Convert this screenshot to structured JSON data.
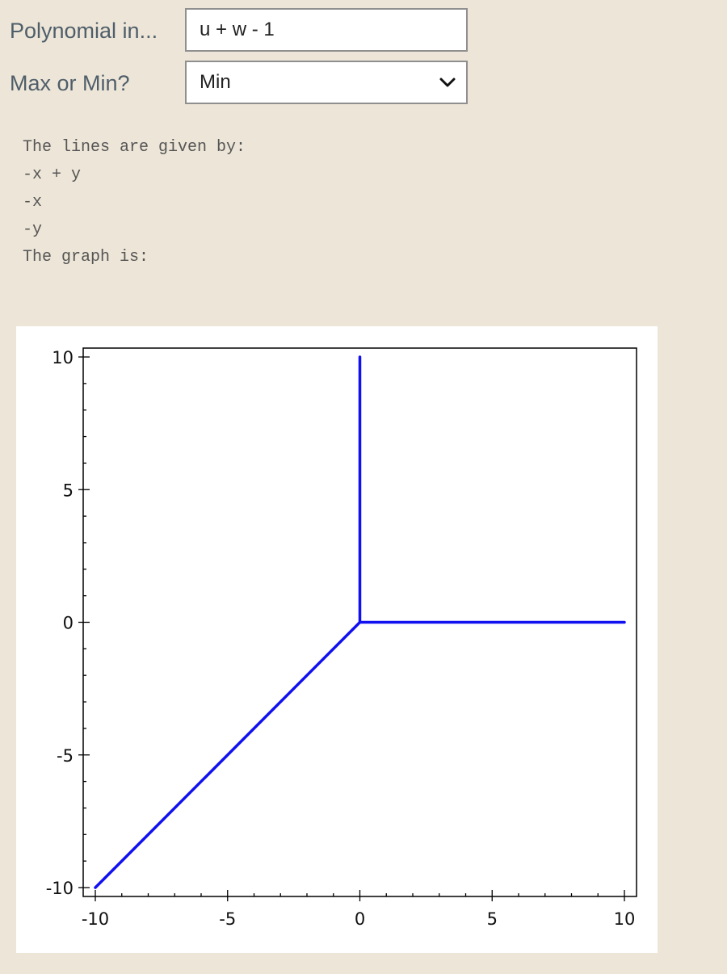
{
  "form": {
    "polynomial": {
      "label": "Polynomial in...",
      "value": "u + w - 1"
    },
    "maxmin": {
      "label": "Max or Min?",
      "selected": "Min"
    }
  },
  "output": {
    "lines": [
      "The lines are given by:",
      "-x + y",
      "-x",
      "-y",
      "The graph is:"
    ]
  },
  "colors": {
    "line": "#1010f0",
    "background": "#ede6d8"
  },
  "chart_data": {
    "type": "line",
    "title": "",
    "xlabel": "",
    "ylabel": "",
    "xlim": [
      -10,
      10
    ],
    "ylim": [
      -10,
      10
    ],
    "xticks": [
      -10,
      -5,
      0,
      5,
      10
    ],
    "yticks": [
      -10,
      -5,
      0,
      5,
      10
    ],
    "xtick_labels": [
      "-10",
      "-5",
      "0",
      "5",
      "10"
    ],
    "ytick_labels": [
      "-10",
      "-5",
      "0",
      "5",
      "10"
    ],
    "minor_step": 1,
    "grid": false,
    "series": [
      {
        "x": [
          -10,
          0
        ],
        "y": [
          -10,
          0
        ]
      },
      {
        "x": [
          0,
          0
        ],
        "y": [
          0,
          10
        ]
      },
      {
        "x": [
          0,
          10
        ],
        "y": [
          0,
          0
        ]
      }
    ]
  }
}
